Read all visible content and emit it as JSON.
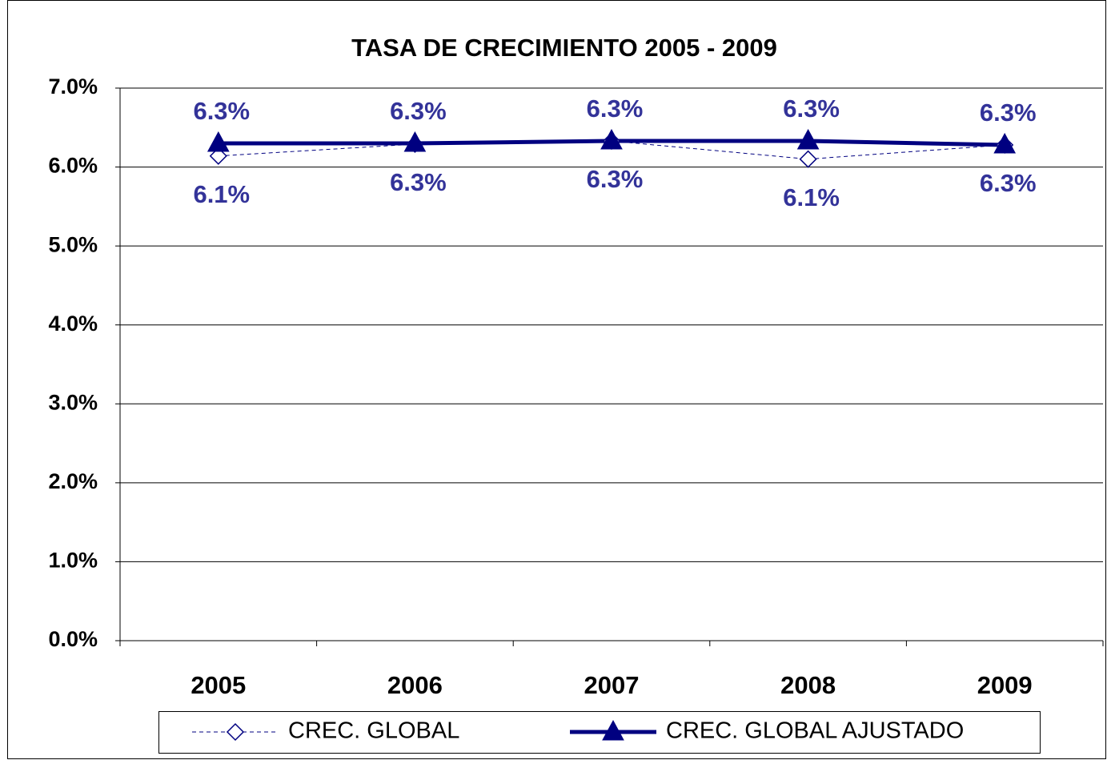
{
  "chart_data": {
    "type": "line",
    "title": "TASA DE CRECIMIENTO 2005 - 2009",
    "categories": [
      "2005",
      "2006",
      "2007",
      "2008",
      "2009"
    ],
    "series": [
      {
        "name": "CREC. GLOBAL",
        "color": "#000080",
        "label_color": "#333399",
        "dashed": true,
        "marker": "diamond",
        "values": [
          6.14,
          6.29,
          6.33,
          6.1,
          6.28
        ],
        "value_labels": [
          "6.1%",
          "6.3%",
          "6.3%",
          "6.1%",
          "6.3%"
        ]
      },
      {
        "name": "CREC. GLOBAL AJUSTADO",
        "color": "#000080",
        "label_color": "#333399",
        "dashed": false,
        "marker": "triangle",
        "values": [
          6.3,
          6.3,
          6.33,
          6.33,
          6.28
        ],
        "value_labels": [
          "6.3%",
          "6.3%",
          "6.3%",
          "6.3%",
          "6.3%"
        ]
      }
    ],
    "ylim": [
      0,
      7
    ],
    "yticks": [
      {
        "value": 0,
        "label": "0.0%"
      },
      {
        "value": 1,
        "label": "1.0%"
      },
      {
        "value": 2,
        "label": "2.0%"
      },
      {
        "value": 3,
        "label": "3.0%"
      },
      {
        "value": 4,
        "label": "4.0%"
      },
      {
        "value": 5,
        "label": "5.0%"
      },
      {
        "value": 6,
        "label": "6.0%"
      },
      {
        "value": 7,
        "label": "7.0%"
      }
    ],
    "grid": true,
    "legend": "bottom"
  }
}
